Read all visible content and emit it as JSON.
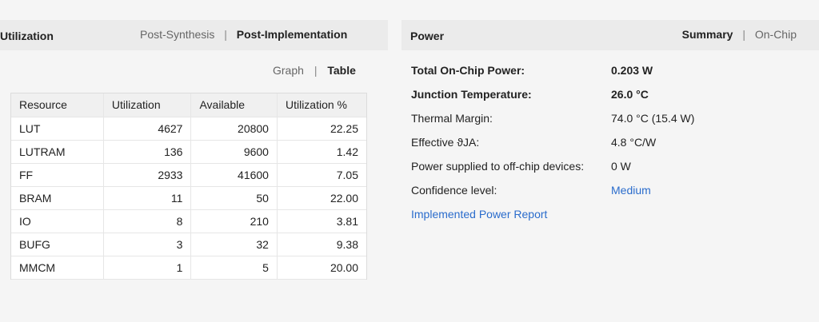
{
  "utilization": {
    "title": "Utilization",
    "tabs": {
      "post_synthesis": "Post-Synthesis",
      "separator": "|",
      "post_implementation": "Post-Implementation"
    },
    "view_toggle": {
      "graph": "Graph",
      "separator": "|",
      "table": "Table"
    },
    "table": {
      "headers": [
        "Resource",
        "Utilization",
        "Available",
        "Utilization %"
      ],
      "rows": [
        [
          "LUT",
          "4627",
          "20800",
          "22.25"
        ],
        [
          "LUTRAM",
          "136",
          "9600",
          "1.42"
        ],
        [
          "FF",
          "2933",
          "41600",
          "7.05"
        ],
        [
          "BRAM",
          "11",
          "50",
          "22.00"
        ],
        [
          "IO",
          "8",
          "210",
          "3.81"
        ],
        [
          "BUFG",
          "3",
          "32",
          "9.38"
        ],
        [
          "MMCM",
          "1",
          "5",
          "20.00"
        ]
      ]
    }
  },
  "power": {
    "title": "Power",
    "tabs": {
      "summary": "Summary",
      "separator": "|",
      "on_chip": "On-Chip"
    },
    "rows": [
      {
        "label": "Total On-Chip Power:",
        "value": "0.203 W",
        "bold": true
      },
      {
        "label": "Junction Temperature:",
        "value": "26.0 °C",
        "bold": true
      },
      {
        "label": "Thermal Margin:",
        "value": "74.0 °C (15.4 W)",
        "bold": false
      },
      {
        "label": "Effective ϑJA:",
        "value": "4.8 °C/W",
        "bold": false
      },
      {
        "label": "Power supplied to off-chip devices:",
        "value": "0 W",
        "bold": false
      },
      {
        "label": "Confidence level:",
        "value": "Medium",
        "bold": false,
        "link": true
      }
    ],
    "report_link": "Implemented Power Report",
    "colors": {
      "link": "#2a6ccc"
    }
  }
}
